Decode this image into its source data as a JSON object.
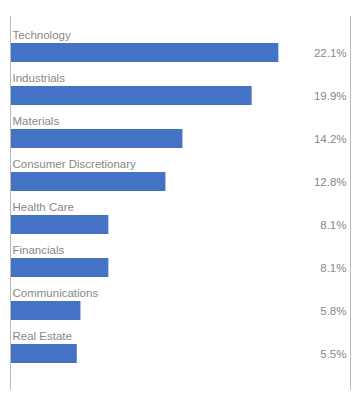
{
  "chart_data": {
    "type": "bar",
    "orientation": "horizontal",
    "categories": [
      "Technology",
      "Industrials",
      "Materials",
      "Consumer Discretionary",
      "Health Care",
      "Financials",
      "Communications",
      "Real Estate"
    ],
    "values": [
      22.1,
      19.9,
      14.2,
      12.8,
      8.1,
      8.1,
      5.8,
      5.5
    ],
    "value_labels": [
      "22.1%",
      "19.9%",
      "14.2%",
      "12.8%",
      "8.1%",
      "8.1%",
      "5.8%",
      "5.5%"
    ],
    "color": "#4472C4",
    "xlim": [
      0,
      28
    ],
    "data_labels": true,
    "tick_labels": false,
    "grid": false
  }
}
